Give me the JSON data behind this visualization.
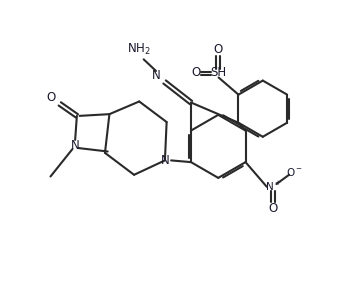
{
  "bg": "#ffffff",
  "lc": "#2a2a2a",
  "tc": "#1a1a2e",
  "lw": 1.5,
  "fs": 7.5,
  "fig_w": 3.44,
  "fig_h": 3.03,
  "dpi": 100,
  "xlim": [
    0,
    10
  ],
  "ylim": [
    0,
    8.8
  ]
}
